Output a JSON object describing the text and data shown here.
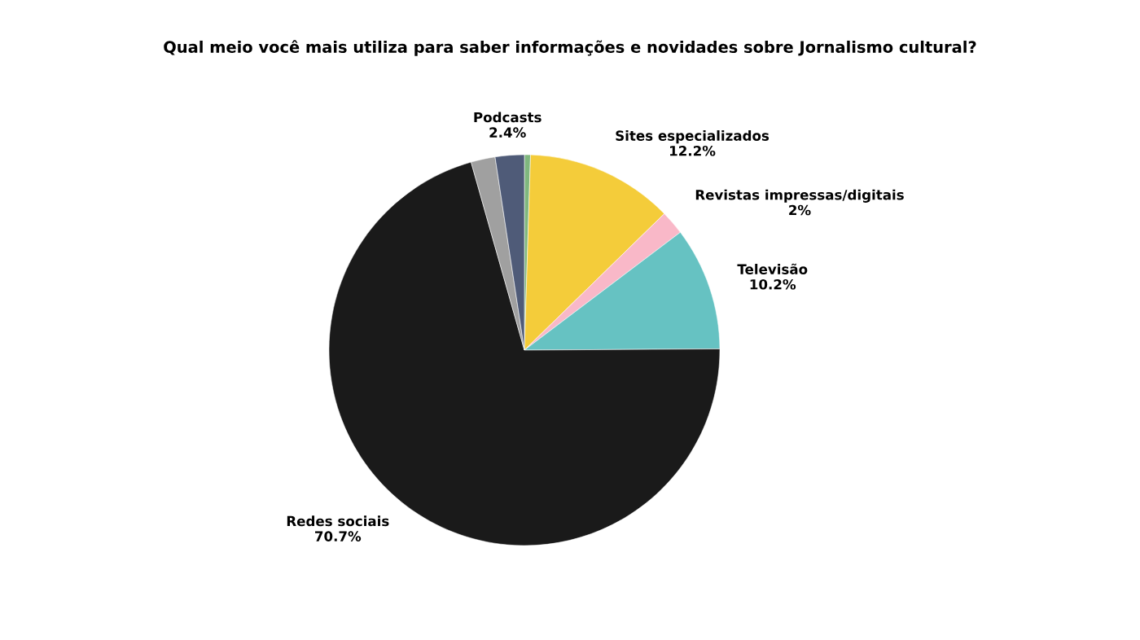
{
  "chart_data": {
    "type": "pie",
    "title": "Qual meio você mais utiliza para saber informações e novidades sobre Jornalismo cultural?",
    "categories": [
      null,
      "Sites especializados",
      "Revistas impressas/digitais",
      "Televisão",
      "Redes sociais",
      null,
      "Podcasts"
    ],
    "values": [
      0.5,
      12.2,
      2,
      10.2,
      70.7,
      2.0,
      2.4
    ],
    "value_labels": [
      null,
      "12.2%",
      "2%",
      "10.2%",
      "70.7%",
      null,
      "2.4%"
    ],
    "colors": [
      "#7fb77e",
      "#f4cc3a",
      "#f9b8c8",
      "#66c2c2",
      "#1a1a1a",
      "#a0a0a0",
      "#4f5b78"
    ],
    "legend": false
  }
}
